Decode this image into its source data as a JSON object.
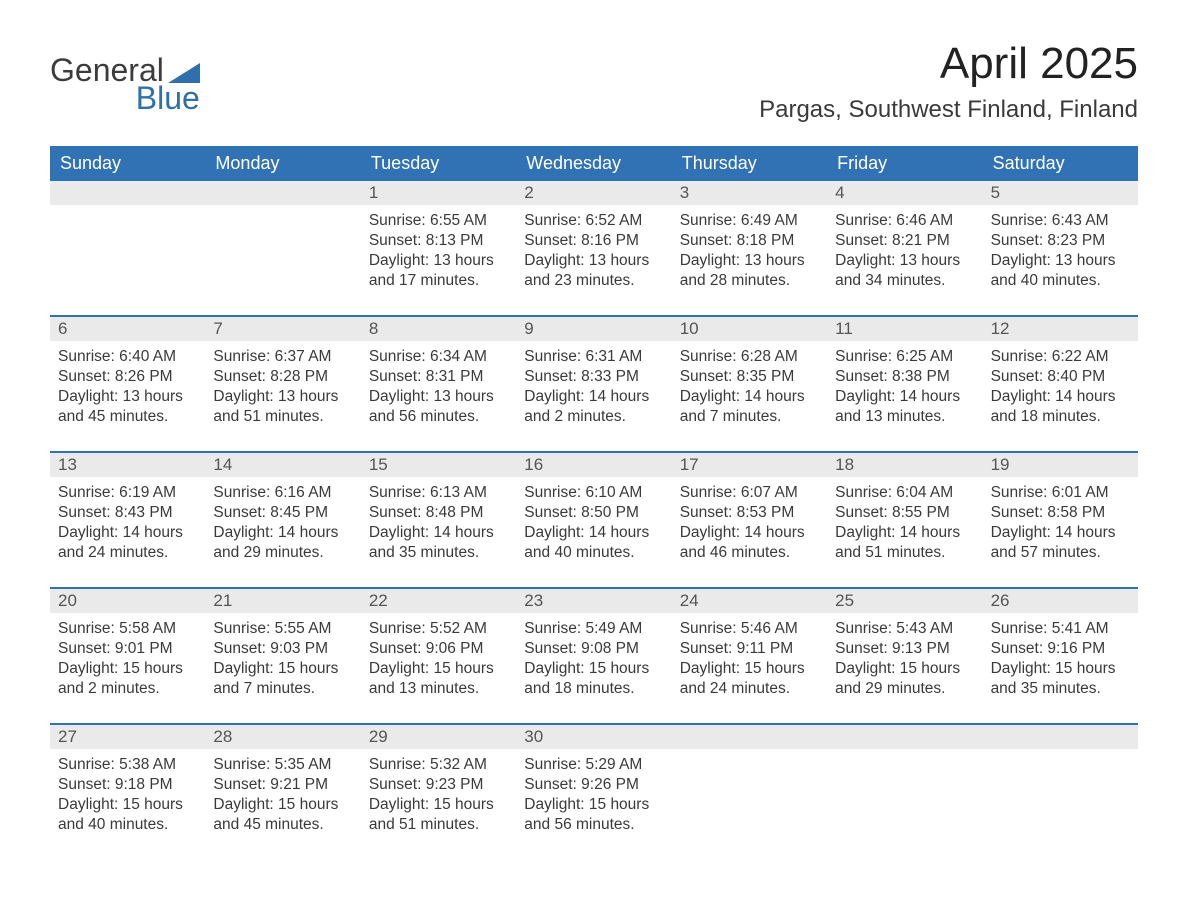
{
  "logo": {
    "part1": "General",
    "part2": "Blue",
    "triangle_color": "#2f6fab"
  },
  "title": "April 2025",
  "subtitle": "Pargas, Southwest Finland, Finland",
  "colors": {
    "header_bg": "#3072b3",
    "header_text": "#ffffff",
    "daynum_bg": "#eaeaea",
    "week_border": "#3072b3",
    "body_text": "#3a3a3a"
  },
  "day_names": [
    "Sunday",
    "Monday",
    "Tuesday",
    "Wednesday",
    "Thursday",
    "Friday",
    "Saturday"
  ],
  "weeks": [
    [
      {
        "n": "",
        "lines": []
      },
      {
        "n": "",
        "lines": []
      },
      {
        "n": "1",
        "lines": [
          "Sunrise: 6:55 AM",
          "Sunset: 8:13 PM",
          "Daylight: 13 hours",
          "and 17 minutes."
        ]
      },
      {
        "n": "2",
        "lines": [
          "Sunrise: 6:52 AM",
          "Sunset: 8:16 PM",
          "Daylight: 13 hours",
          "and 23 minutes."
        ]
      },
      {
        "n": "3",
        "lines": [
          "Sunrise: 6:49 AM",
          "Sunset: 8:18 PM",
          "Daylight: 13 hours",
          "and 28 minutes."
        ]
      },
      {
        "n": "4",
        "lines": [
          "Sunrise: 6:46 AM",
          "Sunset: 8:21 PM",
          "Daylight: 13 hours",
          "and 34 minutes."
        ]
      },
      {
        "n": "5",
        "lines": [
          "Sunrise: 6:43 AM",
          "Sunset: 8:23 PM",
          "Daylight: 13 hours",
          "and 40 minutes."
        ]
      }
    ],
    [
      {
        "n": "6",
        "lines": [
          "Sunrise: 6:40 AM",
          "Sunset: 8:26 PM",
          "Daylight: 13 hours",
          "and 45 minutes."
        ]
      },
      {
        "n": "7",
        "lines": [
          "Sunrise: 6:37 AM",
          "Sunset: 8:28 PM",
          "Daylight: 13 hours",
          "and 51 minutes."
        ]
      },
      {
        "n": "8",
        "lines": [
          "Sunrise: 6:34 AM",
          "Sunset: 8:31 PM",
          "Daylight: 13 hours",
          "and 56 minutes."
        ]
      },
      {
        "n": "9",
        "lines": [
          "Sunrise: 6:31 AM",
          "Sunset: 8:33 PM",
          "Daylight: 14 hours",
          "and 2 minutes."
        ]
      },
      {
        "n": "10",
        "lines": [
          "Sunrise: 6:28 AM",
          "Sunset: 8:35 PM",
          "Daylight: 14 hours",
          "and 7 minutes."
        ]
      },
      {
        "n": "11",
        "lines": [
          "Sunrise: 6:25 AM",
          "Sunset: 8:38 PM",
          "Daylight: 14 hours",
          "and 13 minutes."
        ]
      },
      {
        "n": "12",
        "lines": [
          "Sunrise: 6:22 AM",
          "Sunset: 8:40 PM",
          "Daylight: 14 hours",
          "and 18 minutes."
        ]
      }
    ],
    [
      {
        "n": "13",
        "lines": [
          "Sunrise: 6:19 AM",
          "Sunset: 8:43 PM",
          "Daylight: 14 hours",
          "and 24 minutes."
        ]
      },
      {
        "n": "14",
        "lines": [
          "Sunrise: 6:16 AM",
          "Sunset: 8:45 PM",
          "Daylight: 14 hours",
          "and 29 minutes."
        ]
      },
      {
        "n": "15",
        "lines": [
          "Sunrise: 6:13 AM",
          "Sunset: 8:48 PM",
          "Daylight: 14 hours",
          "and 35 minutes."
        ]
      },
      {
        "n": "16",
        "lines": [
          "Sunrise: 6:10 AM",
          "Sunset: 8:50 PM",
          "Daylight: 14 hours",
          "and 40 minutes."
        ]
      },
      {
        "n": "17",
        "lines": [
          "Sunrise: 6:07 AM",
          "Sunset: 8:53 PM",
          "Daylight: 14 hours",
          "and 46 minutes."
        ]
      },
      {
        "n": "18",
        "lines": [
          "Sunrise: 6:04 AM",
          "Sunset: 8:55 PM",
          "Daylight: 14 hours",
          "and 51 minutes."
        ]
      },
      {
        "n": "19",
        "lines": [
          "Sunrise: 6:01 AM",
          "Sunset: 8:58 PM",
          "Daylight: 14 hours",
          "and 57 minutes."
        ]
      }
    ],
    [
      {
        "n": "20",
        "lines": [
          "Sunrise: 5:58 AM",
          "Sunset: 9:01 PM",
          "Daylight: 15 hours",
          "and 2 minutes."
        ]
      },
      {
        "n": "21",
        "lines": [
          "Sunrise: 5:55 AM",
          "Sunset: 9:03 PM",
          "Daylight: 15 hours",
          "and 7 minutes."
        ]
      },
      {
        "n": "22",
        "lines": [
          "Sunrise: 5:52 AM",
          "Sunset: 9:06 PM",
          "Daylight: 15 hours",
          "and 13 minutes."
        ]
      },
      {
        "n": "23",
        "lines": [
          "Sunrise: 5:49 AM",
          "Sunset: 9:08 PM",
          "Daylight: 15 hours",
          "and 18 minutes."
        ]
      },
      {
        "n": "24",
        "lines": [
          "Sunrise: 5:46 AM",
          "Sunset: 9:11 PM",
          "Daylight: 15 hours",
          "and 24 minutes."
        ]
      },
      {
        "n": "25",
        "lines": [
          "Sunrise: 5:43 AM",
          "Sunset: 9:13 PM",
          "Daylight: 15 hours",
          "and 29 minutes."
        ]
      },
      {
        "n": "26",
        "lines": [
          "Sunrise: 5:41 AM",
          "Sunset: 9:16 PM",
          "Daylight: 15 hours",
          "and 35 minutes."
        ]
      }
    ],
    [
      {
        "n": "27",
        "lines": [
          "Sunrise: 5:38 AM",
          "Sunset: 9:18 PM",
          "Daylight: 15 hours",
          "and 40 minutes."
        ]
      },
      {
        "n": "28",
        "lines": [
          "Sunrise: 5:35 AM",
          "Sunset: 9:21 PM",
          "Daylight: 15 hours",
          "and 45 minutes."
        ]
      },
      {
        "n": "29",
        "lines": [
          "Sunrise: 5:32 AM",
          "Sunset: 9:23 PM",
          "Daylight: 15 hours",
          "and 51 minutes."
        ]
      },
      {
        "n": "30",
        "lines": [
          "Sunrise: 5:29 AM",
          "Sunset: 9:26 PM",
          "Daylight: 15 hours",
          "and 56 minutes."
        ]
      },
      {
        "n": "",
        "lines": []
      },
      {
        "n": "",
        "lines": []
      },
      {
        "n": "",
        "lines": []
      }
    ]
  ]
}
